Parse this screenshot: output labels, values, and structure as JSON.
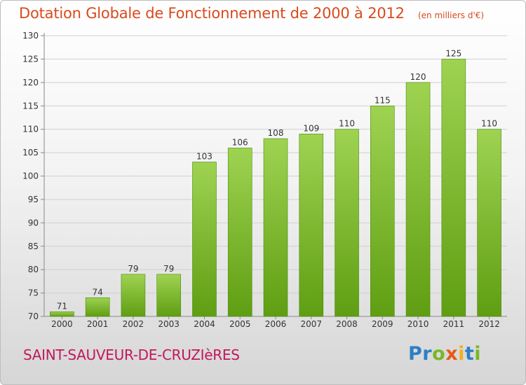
{
  "title": "Dotation Globale de Fonctionnement de 2000 à 2012",
  "unit_note": "(en milliers d'€)",
  "commune": "SAINT-SAUVEUR-DE-CRUZIèRES",
  "brand": {
    "letters": [
      {
        "char": "P",
        "color": "#2e7fc4"
      },
      {
        "char": "r",
        "color": "#2e7fc4"
      },
      {
        "char": "o",
        "color": "#79b728"
      },
      {
        "char": "x",
        "color": "#e8591a"
      },
      {
        "char": "i",
        "color": "#f2b01e"
      },
      {
        "char": "t",
        "color": "#2e7fc4"
      },
      {
        "char": "i",
        "color": "#79b728"
      }
    ]
  },
  "colors": {
    "bar_top": "#9ed352",
    "bar_bottom": "#5f9e12",
    "title": "#d84a1e",
    "commune": "#c2185b"
  },
  "chart_data": {
    "type": "bar",
    "categories": [
      "2000",
      "2001",
      "2002",
      "2003",
      "2004",
      "2005",
      "2006",
      "2007",
      "2008",
      "2009",
      "2010",
      "2011",
      "2012"
    ],
    "values": [
      71,
      74,
      79,
      79,
      103,
      106,
      108,
      109,
      110,
      115,
      120,
      125,
      110
    ],
    "ylim": [
      70,
      130
    ],
    "yticks": [
      70,
      75,
      80,
      85,
      90,
      95,
      100,
      105,
      110,
      115,
      120,
      125,
      130
    ],
    "grid": true,
    "data_labels": true
  }
}
